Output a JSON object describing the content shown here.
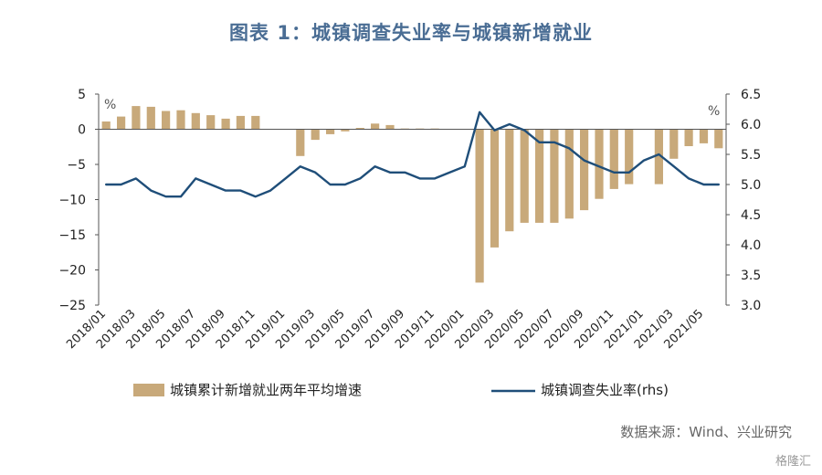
{
  "title": "图表 1：城镇调查失业率与城镇新增就业",
  "source": "数据来源：Wind、兴业研究",
  "watermark": "格隆汇",
  "chart_data": {
    "type": "bar+line",
    "title": "图表 1：城镇调查失业率与城镇新增就业",
    "left_axis": {
      "unit": "%",
      "range": [
        -25,
        5
      ],
      "ticks": [
        5,
        0,
        -5,
        -10,
        -15,
        -20,
        -25
      ]
    },
    "right_axis": {
      "unit": "%",
      "range": [
        3.0,
        6.5
      ],
      "ticks": [
        6.5,
        6.0,
        5.5,
        5.0,
        4.5,
        4.0,
        3.5,
        3.0
      ]
    },
    "grid": false,
    "legend_position": "bottom",
    "x": [
      "2018/01",
      "2018/02",
      "2018/03",
      "2018/04",
      "2018/05",
      "2018/06",
      "2018/07",
      "2018/08",
      "2018/09",
      "2018/10",
      "2018/11",
      "2018/12",
      "2019/01",
      "2019/02",
      "2019/03",
      "2019/04",
      "2019/05",
      "2019/06",
      "2019/07",
      "2019/08",
      "2019/09",
      "2019/10",
      "2019/11",
      "2019/12",
      "2020/01",
      "2020/02",
      "2020/03",
      "2020/04",
      "2020/05",
      "2020/06",
      "2020/07",
      "2020/08",
      "2020/09",
      "2020/10",
      "2020/11",
      "2020/12",
      "2021/01",
      "2021/02",
      "2021/03",
      "2021/04",
      "2021/05",
      "2021/06"
    ],
    "x_tick_labels": [
      "2018/01",
      "2018/03",
      "2018/05",
      "2018/07",
      "2018/09",
      "2018/11",
      "2019/01",
      "2019/03",
      "2019/05",
      "2019/07",
      "2019/09",
      "2019/11",
      "2020/01",
      "2020/03",
      "2020/05",
      "2020/07",
      "2020/09",
      "2020/11",
      "2021/01",
      "2021/03",
      "2021/05"
    ],
    "series": [
      {
        "name": "城镇累计新增就业两年平均增速",
        "type": "bar",
        "axis": "left",
        "color": "#c8a97a",
        "values": [
          1.1,
          1.8,
          3.3,
          3.2,
          2.6,
          2.7,
          2.3,
          2.0,
          1.5,
          1.9,
          1.9,
          null,
          null,
          -3.8,
          -1.5,
          -0.7,
          -0.3,
          0.2,
          0.8,
          0.6,
          0.1,
          0.1,
          0.1,
          null,
          null,
          -21.8,
          -16.8,
          -14.5,
          -13.3,
          -13.3,
          -13.3,
          -12.7,
          -11.5,
          -9.9,
          -8.5,
          -7.8,
          null,
          -7.8,
          -4.2,
          -2.4,
          -2.0,
          -2.7
        ]
      },
      {
        "name": "城镇调查失业率(rhs)",
        "type": "line",
        "axis": "right",
        "color": "#1f4e79",
        "values": [
          5.0,
          5.0,
          5.1,
          4.9,
          4.8,
          4.8,
          5.1,
          5.0,
          4.9,
          4.9,
          4.8,
          4.9,
          5.1,
          5.3,
          5.2,
          5.0,
          5.0,
          5.1,
          5.3,
          5.2,
          5.2,
          5.1,
          5.1,
          5.2,
          5.3,
          6.2,
          5.9,
          6.0,
          5.9,
          5.7,
          5.7,
          5.6,
          5.4,
          5.3,
          5.2,
          5.2,
          5.4,
          5.5,
          5.3,
          5.1,
          5.0,
          5.0
        ]
      }
    ]
  }
}
